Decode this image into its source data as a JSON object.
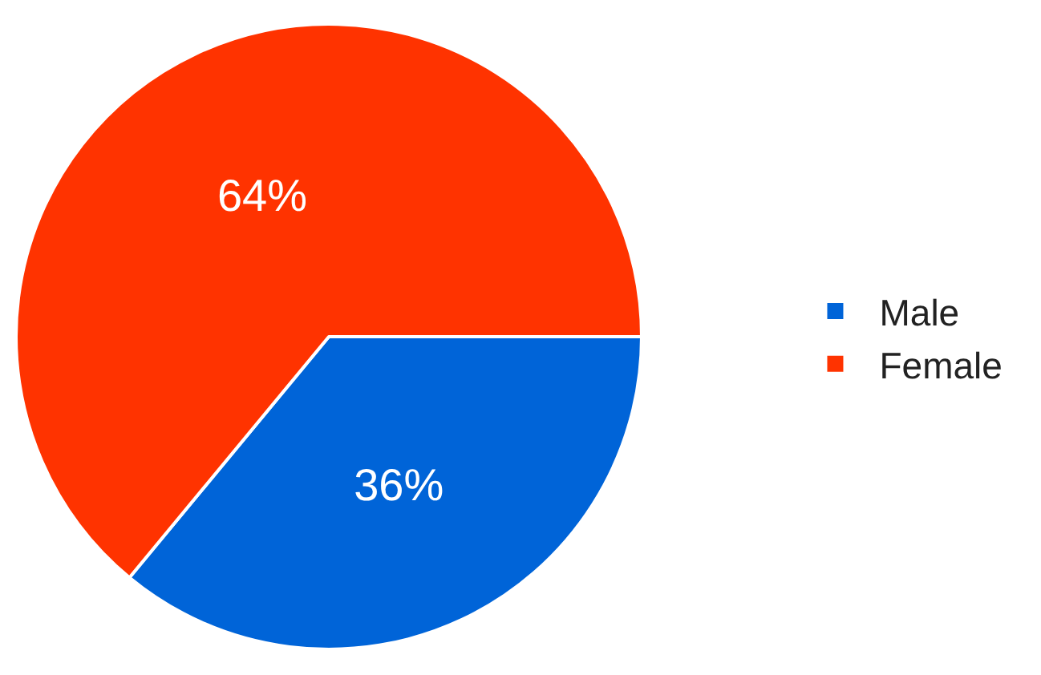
{
  "chart_data": {
    "type": "pie",
    "categories": [
      "Male",
      "Female"
    ],
    "values": [
      36,
      64
    ],
    "colors": [
      "#0064d8",
      "#ff3300"
    ],
    "value_labels": [
      "36%",
      "64%"
    ],
    "legend": "right"
  }
}
